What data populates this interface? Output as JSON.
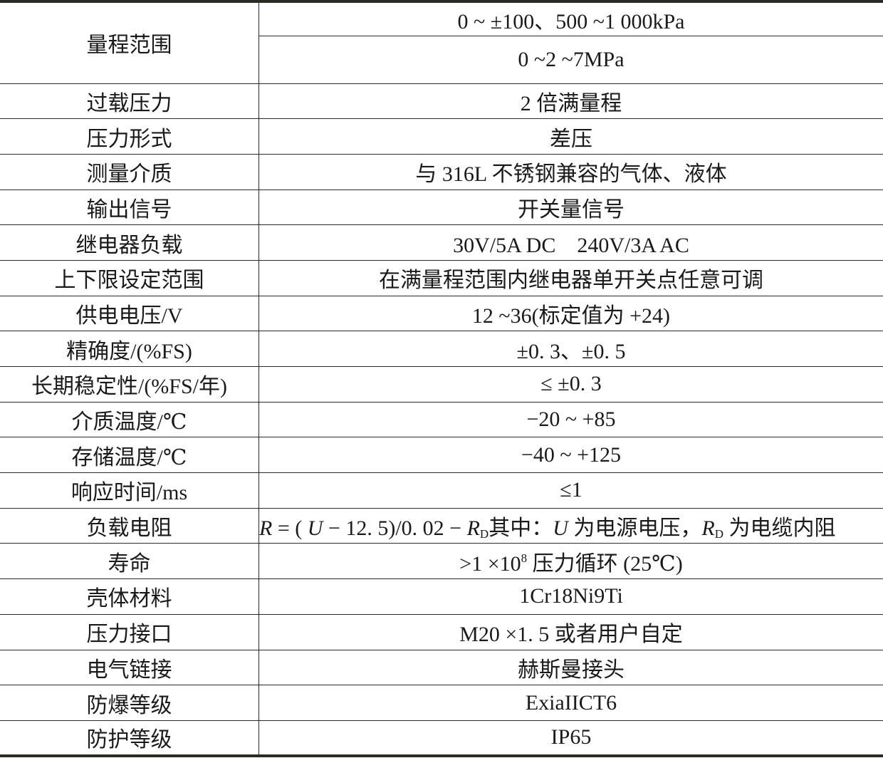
{
  "range": {
    "label": "量程范围",
    "values": [
      "0 ~ ±100、500 ~1 000kPa",
      "0 ~2 ~7MPa"
    ]
  },
  "rows": [
    {
      "label": "过载压力",
      "value": "2 倍满量程"
    },
    {
      "label": "压力形式",
      "value": "差压"
    },
    {
      "label": "测量介质",
      "value": "与 316L 不锈钢兼容的气体、液体"
    },
    {
      "label": "输出信号",
      "value": "开关量信号"
    },
    {
      "label": "继电器负载",
      "value": "30V/5A DC　240V/3A AC"
    },
    {
      "label": "上下限设定范围",
      "value": "在满量程范围内继电器单开关点任意可调"
    },
    {
      "label": "供电电压/V",
      "value": "12 ~36(标定值为 +24)"
    },
    {
      "label": "精确度/(%FS)",
      "value": "±0. 3、±0. 5"
    },
    {
      "label": "长期稳定性/(%FS/年)",
      "value": "≤ ±0. 3"
    },
    {
      "label": "介质温度/℃",
      "value": "−20 ~ +85"
    },
    {
      "label": "存储温度/℃",
      "value": "−40 ~ +125"
    },
    {
      "label": "响应时间/ms",
      "value": "≤1"
    },
    {
      "label": "负载电阻",
      "formula": {
        "r": "R",
        "eq": " = ( ",
        "u": "U",
        "mid": " − 12. 5)/0. 02 − ",
        "r2": "R",
        "sub": "D",
        "text1": "其中：",
        "u2": "U",
        "text2": " 为电源电压，",
        "r3": "R",
        "sub2": "D",
        "text3": " 为电缆内阻"
      }
    },
    {
      "label": "寿命",
      "life": {
        "pre": ">1 ×10",
        "exp": "8",
        "post": " 压力循环 (25℃)"
      }
    },
    {
      "label": "壳体材料",
      "value": "1Cr18Ni9Ti"
    },
    {
      "label": "压力接口",
      "value": "M20 ×1. 5 或者用户自定"
    },
    {
      "label": "电气链接",
      "value": "赫斯曼接头"
    },
    {
      "label": "防爆等级",
      "value": "ExiaIICT6"
    },
    {
      "label": "防护等级",
      "value": "IP65"
    }
  ]
}
